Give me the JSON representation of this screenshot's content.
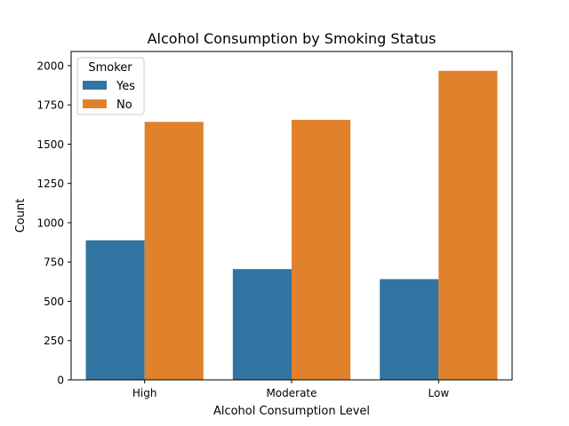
{
  "chart_data": {
    "type": "bar",
    "title": "Alcohol Consumption by Smoking Status",
    "xlabel": "Alcohol Consumption Level",
    "ylabel": "Count",
    "categories": [
      "High",
      "Moderate",
      "Low"
    ],
    "series": [
      {
        "name": "Yes",
        "color": "#3274a1",
        "values": [
          888,
          705,
          641
        ]
      },
      {
        "name": "No",
        "color": "#e1812c",
        "values": [
          1642,
          1655,
          1967
        ]
      }
    ],
    "ylim": [
      0,
      2090
    ],
    "yticks": [
      0,
      250,
      500,
      750,
      1000,
      1250,
      1500,
      1750,
      2000
    ],
    "grid": false,
    "legend": {
      "title": "Smoker",
      "placement": "top-left"
    }
  }
}
